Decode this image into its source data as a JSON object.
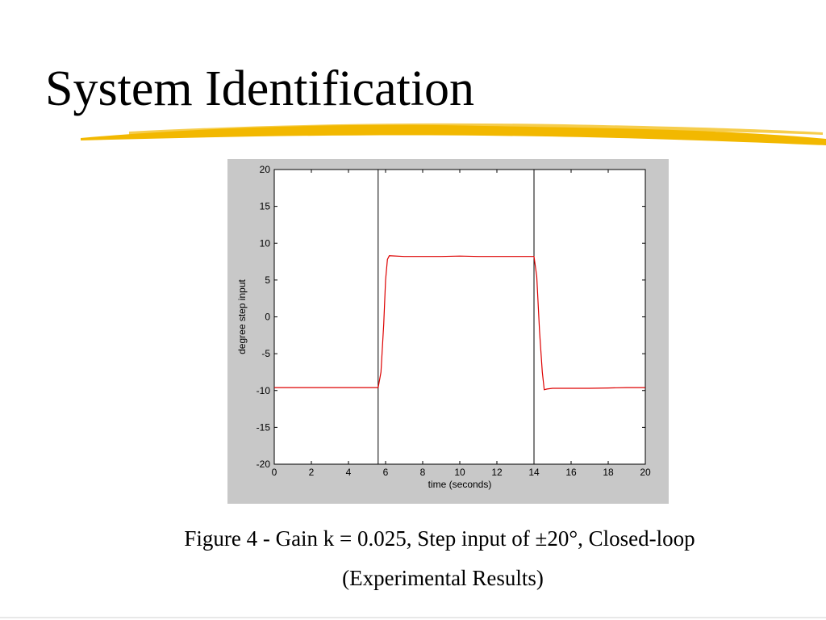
{
  "slide": {
    "title": "System Identification",
    "underline_color": "#f2b800",
    "caption_line_1": "Figure 4 - Gain k = 0.025, Step input of ±20°, Closed-loop",
    "caption_line_2": "(Experimental Results)"
  },
  "chart_data": {
    "type": "line",
    "title": "",
    "xlabel": "time (seconds)",
    "ylabel": "degree step input",
    "xlim": [
      0,
      20
    ],
    "ylim": [
      -20,
      20
    ],
    "xticks": [
      "0",
      "2",
      "4",
      "6",
      "8",
      "10",
      "12",
      "14",
      "16",
      "18",
      "20"
    ],
    "yticks": [
      "20",
      "15",
      "10",
      "5",
      "0",
      "-5",
      "-10",
      "-15",
      "-20"
    ],
    "grid": false,
    "background": "#c8c8c8",
    "series": [
      {
        "color": "#dd0000",
        "x": [
          0,
          5.6,
          5.75,
          5.9,
          6.0,
          6.1,
          6.2,
          7,
          8,
          9,
          10,
          11,
          12,
          13,
          14.0,
          14.15,
          14.3,
          14.45,
          14.55,
          14.7,
          15,
          16,
          17,
          18,
          19,
          20
        ],
        "y": [
          -9.6,
          -9.6,
          -7.5,
          -1.0,
          5.0,
          7.8,
          8.3,
          8.2,
          8.2,
          8.2,
          8.25,
          8.2,
          8.2,
          8.2,
          8.2,
          5.5,
          -2.0,
          -7.5,
          -9.9,
          -9.8,
          -9.7,
          -9.7,
          -9.7,
          -9.65,
          -9.6,
          -9.6
        ]
      }
    ],
    "vertical_lines": [
      5.6,
      14.0
    ],
    "vertical_line_color": "#000000"
  }
}
